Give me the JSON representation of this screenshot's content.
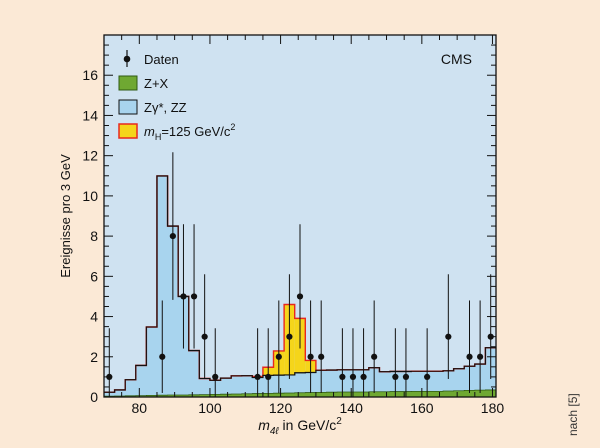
{
  "colors": {
    "page_bg": "#fbe9d6",
    "plot_bg": "#cfe2f1",
    "zzx_fill": "#a8d4ee",
    "zx_fill": "#6fa832",
    "zx_line": "#2f5a12",
    "higgs_fill": "#f5d51a",
    "higgs_line": "#e8281e",
    "outline": "#111111"
  },
  "chart_data": {
    "type": "bar",
    "annotation": "CMS",
    "ylabel": "Ereignisse pro 3 GeV",
    "xlabel": {
      "main": "m",
      "sub": "4ℓ",
      "suffix": " in GeV/c",
      "sup": "2"
    },
    "xlim": [
      70,
      181
    ],
    "ylim": [
      0,
      18
    ],
    "x_ticks": [
      80,
      100,
      120,
      140,
      160,
      180
    ],
    "y_ticks": [
      0,
      2,
      4,
      6,
      8,
      10,
      12,
      14,
      16
    ],
    "legend_position": "top-left",
    "legend": [
      {
        "key": "data",
        "label": "Daten"
      },
      {
        "key": "zx",
        "label": "Z+X"
      },
      {
        "key": "zzx",
        "label": "Zγ*, ZZ"
      },
      {
        "key": "higgs",
        "label": "=125 GeV/c",
        "label_main": "m",
        "label_sub": "H",
        "label_sup": "2"
      }
    ],
    "bin_edges": [
      70,
      73,
      76,
      79,
      82,
      85,
      88,
      91,
      94,
      97,
      100,
      103,
      106,
      109,
      112,
      115,
      118,
      121,
      124,
      127,
      130,
      133,
      136,
      139,
      142,
      145,
      148,
      151,
      154,
      157,
      160,
      163,
      166,
      169,
      172,
      175,
      178,
      181
    ],
    "series": [
      {
        "key": "zx",
        "name": "Z+X",
        "values": [
          0.04,
          0.05,
          0.06,
          0.07,
          0.08,
          0.09,
          0.1,
          0.1,
          0.11,
          0.12,
          0.13,
          0.14,
          0.15,
          0.16,
          0.17,
          0.18,
          0.19,
          0.2,
          0.21,
          0.22,
          0.23,
          0.24,
          0.25,
          0.25,
          0.25,
          0.26,
          0.26,
          0.27,
          0.27,
          0.28,
          0.28,
          0.28,
          0.3,
          0.31,
          0.33,
          0.34,
          0.35
        ]
      },
      {
        "key": "zzx",
        "name": "Zγ*, ZZ",
        "values": [
          0.2,
          0.3,
          0.8,
          1.5,
          3.4,
          10.9,
          8.4,
          4.9,
          2.2,
          0.8,
          0.7,
          0.8,
          0.9,
          0.9,
          0.8,
          0.9,
          0.9,
          0.9,
          1.0,
          1.0,
          1.1,
          1.1,
          1.1,
          1.1,
          1.1,
          1.2,
          1.0,
          1.0,
          1.0,
          1.0,
          1.0,
          1.0,
          1.0,
          1.1,
          1.2,
          1.3,
          2.1
        ]
      },
      {
        "key": "higgs",
        "name": "mH=125 GeV/c2",
        "values": [
          0,
          0,
          0,
          0,
          0,
          0,
          0,
          0,
          0,
          0,
          0,
          0,
          0,
          0,
          0.05,
          0.4,
          1.2,
          3.5,
          2.7,
          0.6,
          0,
          0,
          0,
          0,
          0,
          0,
          0,
          0,
          0,
          0,
          0,
          0,
          0,
          0,
          0,
          0,
          0
        ]
      },
      {
        "key": "data",
        "name": "Daten",
        "points": [
          {
            "x": 71.5,
            "y": 1
          },
          {
            "x": 86.5,
            "y": 2
          },
          {
            "x": 89.5,
            "y": 8
          },
          {
            "x": 92.5,
            "y": 5
          },
          {
            "x": 95.5,
            "y": 5
          },
          {
            "x": 98.5,
            "y": 3
          },
          {
            "x": 101.5,
            "y": 1
          },
          {
            "x": 113.5,
            "y": 1
          },
          {
            "x": 116.5,
            "y": 1
          },
          {
            "x": 119.5,
            "y": 2
          },
          {
            "x": 122.5,
            "y": 3
          },
          {
            "x": 125.5,
            "y": 5
          },
          {
            "x": 128.5,
            "y": 2
          },
          {
            "x": 131.5,
            "y": 2
          },
          {
            "x": 137.5,
            "y": 1
          },
          {
            "x": 140.5,
            "y": 1
          },
          {
            "x": 143.5,
            "y": 1
          },
          {
            "x": 146.5,
            "y": 2
          },
          {
            "x": 152.5,
            "y": 1
          },
          {
            "x": 155.5,
            "y": 1
          },
          {
            "x": 161.5,
            "y": 1
          },
          {
            "x": 167.5,
            "y": 3
          },
          {
            "x": 173.5,
            "y": 2
          },
          {
            "x": 176.5,
            "y": 2
          },
          {
            "x": 179.5,
            "y": 3
          }
        ]
      }
    ]
  },
  "credit": "nach [5]"
}
